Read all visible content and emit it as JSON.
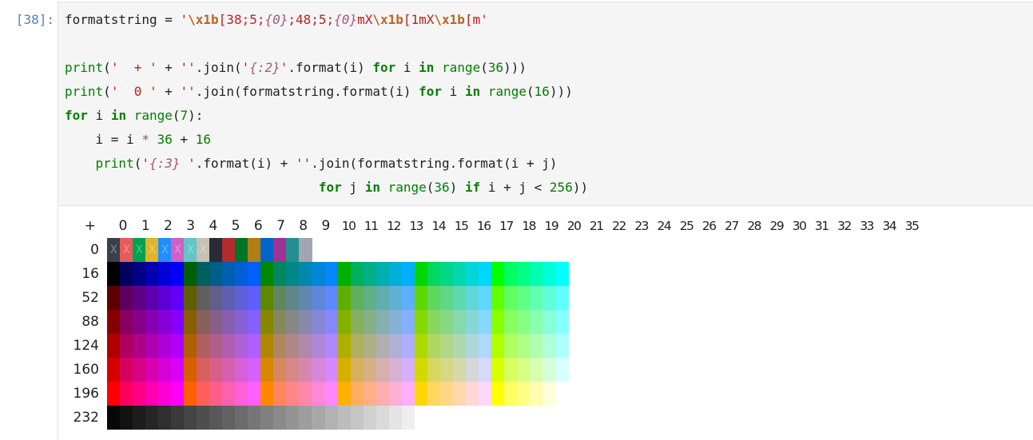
{
  "prompt": "[38]:",
  "code": {
    "line1": {
      "var": "formatstring",
      "op": " = ",
      "q1": "'",
      "esc1": "\\x1b",
      "s1": "[38;5;",
      "i1": "{0}",
      "s2": ";48;5;",
      "i2": "{0}",
      "s3": "mX",
      "esc2": "\\x1b",
      "s4": "[1mX",
      "esc3": "\\x1b",
      "s5": "[m",
      "q2": "'"
    },
    "line3": {
      "f": "print",
      "a": "(",
      "s1": "'  + '",
      "b": " + ",
      "s2": "''",
      "c": ".join(",
      "s3": "'",
      "i": "{:2}",
      "s4": "'",
      "d": ".format(i) ",
      "k1": "for",
      "e": " i ",
      "k2": "in",
      "g": " ",
      "r": "range",
      "h": "(",
      "n": "36",
      "j": ")))"
    },
    "line4": {
      "f": "print",
      "a": "(",
      "s1": "'  0 '",
      "b": " + ",
      "s2": "''",
      "c": ".join(formatstring.format(i) ",
      "k1": "for",
      "e": " i ",
      "k2": "in",
      "g": " ",
      "r": "range",
      "h": "(",
      "n": "16",
      "j": ")))"
    },
    "line5": {
      "k1": "for",
      "e": " i ",
      "k2": "in",
      "g": " ",
      "r": "range",
      "h": "(",
      "n": "7",
      "j": "):"
    },
    "line6": {
      "a": "    i = i ",
      "op": "*",
      "b": " ",
      "n1": "36",
      "c": " + ",
      "n2": "16"
    },
    "line7": {
      "a": "    ",
      "f": "print",
      "b": "(",
      "s1": "'",
      "i": "{:3}",
      "s2": " '",
      "c": ".format(i) + ",
      "s3": "''",
      "d": ".join(formatstring.format(i + j)"
    },
    "line8": {
      "a": "                                 ",
      "k1": "for",
      "e": " j ",
      "k2": "in",
      "g": " ",
      "r": "range",
      "h": "(",
      "n1": "36",
      "j": ") ",
      "k3": "if",
      "m": " i + j < ",
      "n2": "256",
      "z": "))"
    }
  },
  "output": {
    "header_text": "  +   0  1  2  3  4  5  6  7  8  910111213141516171819202122232425262728293031323334 35",
    "header_plus": "+",
    "header_cols": [
      "0",
      "1",
      "2",
      "3",
      "4",
      "5",
      "6",
      "7",
      "8",
      "9",
      "10",
      "11",
      "12",
      "13",
      "14",
      "15",
      "16",
      "17",
      "18",
      "19",
      "20",
      "21",
      "22",
      "23",
      "24",
      "25",
      "26",
      "27",
      "28",
      "29",
      "30",
      "31",
      "32",
      "33",
      "34",
      "35"
    ],
    "row_labels": [
      "0",
      "16",
      "52",
      "88",
      "124",
      "160",
      "196",
      "232"
    ],
    "sample_char": "X",
    "base_colors": [
      "#3a3f4b",
      "#e75c58",
      "#00a250",
      "#ddb62b",
      "#208ffb",
      "#d160c4",
      "#60c6c8",
      "#c5c1b4",
      "#282c36",
      "#b22b31",
      "#007427",
      "#b27d12",
      "#0065ca",
      "#a03196",
      "#258f8f",
      "#a1a6b2"
    ],
    "cube_levels": [
      "#000000",
      "#5f",
      "#87",
      "#af",
      "#d7",
      "#ff"
    ],
    "cube_values": [
      0,
      95,
      135,
      175,
      215,
      255
    ],
    "gray_start": 8,
    "gray_step": 10,
    "gray_count": 24
  }
}
